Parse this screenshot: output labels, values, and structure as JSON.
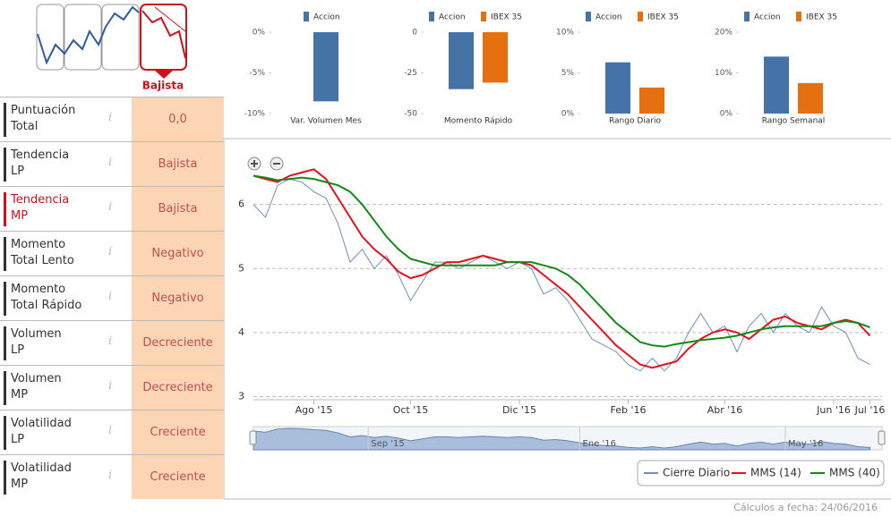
{
  "panel": {
    "selected_trend": "Bajista",
    "rows": [
      {
        "label": "Puntuación\nTotal",
        "value": "0,0"
      },
      {
        "label": "Tendencia\nLP",
        "value": "Bajista"
      },
      {
        "label": "Tendencia\nMP",
        "value": "Bajista"
      },
      {
        "label": "Momento\nTotal Lento",
        "value": "Negativo"
      },
      {
        "label": "Momento\nTotal Rápido",
        "value": "Negativo"
      },
      {
        "label": "Volumen\nLP",
        "value": "Decreciente"
      },
      {
        "label": "Volumen\nMP",
        "value": "Decreciente"
      },
      {
        "label": "Volatilidad\nLP",
        "value": "Creciente"
      },
      {
        "label": "Volatilidad\nMP",
        "value": "Creciente"
      }
    ],
    "footer": "Cálculos a fecha: 24/06/2016"
  },
  "chart_data": [
    {
      "type": "bar",
      "xlabel": "Var. Volumen Mes",
      "series": [
        {
          "name": "Accion",
          "color": "#4572a7",
          "values": [
            -8.5
          ]
        }
      ],
      "ylim": [
        -10,
        0
      ],
      "yticks": [
        {
          "value": 0,
          "label": "0%"
        },
        {
          "value": -5,
          "label": "-5%"
        },
        {
          "value": -10,
          "label": "-10%"
        }
      ]
    },
    {
      "type": "bar",
      "xlabel": "Momento Rápido",
      "series": [
        {
          "name": "Accion",
          "color": "#4572a7",
          "values": [
            -35
          ]
        },
        {
          "name": "IBEX 35",
          "color": "#e5700f",
          "values": [
            -31
          ]
        }
      ],
      "ylim": [
        -50,
        0
      ],
      "yticks": [
        0,
        -25,
        -50
      ]
    },
    {
      "type": "bar",
      "xlabel": "Rango Diario",
      "series": [
        {
          "name": "Accion",
          "color": "#4572a7",
          "values": [
            6.3
          ]
        },
        {
          "name": "IBEX 35",
          "color": "#e5700f",
          "values": [
            3.2
          ]
        }
      ],
      "ylim": [
        0,
        10
      ],
      "yticks": [
        {
          "value": 0,
          "label": "0%"
        },
        {
          "value": 5,
          "label": "5%"
        },
        {
          "value": 10,
          "label": "10%"
        }
      ]
    },
    {
      "type": "bar",
      "xlabel": "Rango Semanal",
      "series": [
        {
          "name": "Accion",
          "color": "#4572a7",
          "values": [
            14
          ]
        },
        {
          "name": "IBEX 35",
          "color": "#e5700f",
          "values": [
            7.5
          ]
        }
      ],
      "ylim": [
        0,
        20
      ],
      "yticks": [
        {
          "value": 0,
          "label": "0%"
        },
        {
          "value": 10,
          "label": "10%"
        },
        {
          "value": 20,
          "label": "20%"
        }
      ]
    },
    {
      "type": "line",
      "categories": [
        null,
        null,
        null,
        null,
        null,
        "Ago '15",
        null,
        null,
        null,
        null,
        null,
        null,
        null,
        "Oct '15",
        null,
        null,
        null,
        null,
        null,
        null,
        null,
        null,
        "Dic '15",
        null,
        null,
        null,
        null,
        null,
        null,
        null,
        null,
        "Feb '16",
        null,
        null,
        null,
        null,
        null,
        null,
        null,
        "Abr '16",
        null,
        null,
        null,
        null,
        null,
        null,
        null,
        null,
        "Jun '16",
        null,
        null,
        "Jul '16"
      ],
      "series": [
        {
          "name": "Cierre Diario",
          "color": "#6f8fbf",
          "values": [
            6.0,
            5.8,
            6.3,
            6.4,
            6.35,
            6.2,
            6.1,
            5.7,
            5.1,
            5.3,
            5.0,
            5.2,
            4.9,
            4.5,
            4.8,
            5.1,
            5.1,
            5.0,
            5.1,
            5.2,
            5.1,
            5.0,
            5.1,
            5.0,
            4.6,
            4.7,
            4.5,
            4.2,
            3.9,
            3.8,
            3.7,
            3.5,
            3.4,
            3.6,
            3.4,
            3.6,
            4.0,
            4.3,
            4.0,
            4.1,
            3.7,
            4.1,
            4.3,
            4.0,
            4.3,
            4.1,
            4.0,
            4.4,
            4.1,
            4.0,
            3.6,
            3.5
          ]
        },
        {
          "name": "MMS (14)",
          "color": "#e8101c",
          "values": [
            6.45,
            6.4,
            6.35,
            6.45,
            6.5,
            6.55,
            6.4,
            6.1,
            5.8,
            5.5,
            5.3,
            5.15,
            4.95,
            4.85,
            4.9,
            5.0,
            5.1,
            5.1,
            5.15,
            5.2,
            5.15,
            5.1,
            5.1,
            5.05,
            4.9,
            4.75,
            4.6,
            4.4,
            4.2,
            4.0,
            3.8,
            3.65,
            3.5,
            3.45,
            3.5,
            3.55,
            3.75,
            3.9,
            4.0,
            4.05,
            4.0,
            3.9,
            4.05,
            4.2,
            4.25,
            4.15,
            4.1,
            4.05,
            4.15,
            4.2,
            4.15,
            3.95
          ]
        },
        {
          "name": "MMS (40)",
          "color": "#138a13",
          "values": [
            6.45,
            6.42,
            6.38,
            6.4,
            6.42,
            6.4,
            6.35,
            6.3,
            6.2,
            6.0,
            5.75,
            5.5,
            5.3,
            5.15,
            5.1,
            5.05,
            5.05,
            5.05,
            5.05,
            5.05,
            5.05,
            5.1,
            5.1,
            5.1,
            5.05,
            5.0,
            4.9,
            4.75,
            4.55,
            4.35,
            4.15,
            4.0,
            3.85,
            3.8,
            3.78,
            3.82,
            3.85,
            3.88,
            3.9,
            3.92,
            3.95,
            4.0,
            4.05,
            4.08,
            4.1,
            4.1,
            4.1,
            4.1,
            4.15,
            4.18,
            4.15,
            4.08
          ]
        }
      ],
      "ylim": [
        2.95,
        6.75
      ],
      "yticks": [
        3,
        4,
        5,
        6
      ],
      "grid": true,
      "navigator_xticks": [
        {
          "value": 9.5,
          "label": "Sep '15"
        },
        {
          "value": 27,
          "label": "Ene '16"
        },
        {
          "value": 44,
          "label": "May '16"
        }
      ],
      "legend": "bottom-right"
    }
  ]
}
